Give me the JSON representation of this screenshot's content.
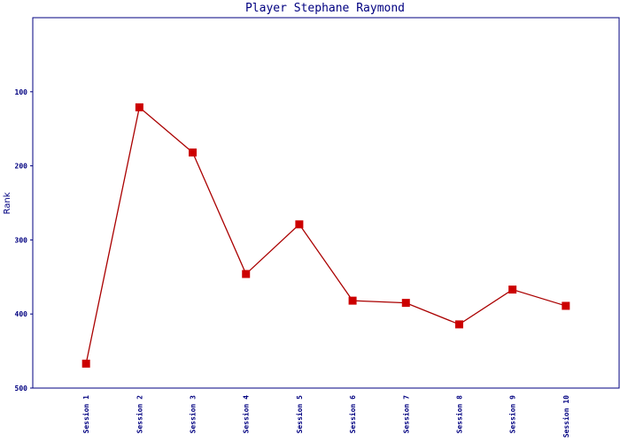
{
  "chart_data": {
    "type": "line",
    "title": "Player Stephane Raymond",
    "y_label": "Rank",
    "categories": [
      "Session 1",
      "Session 2",
      "Session 3",
      "Session 4",
      "Session 5",
      "Session 6",
      "Session 7",
      "Session 8",
      "Session 9",
      "Session 10"
    ],
    "series": [
      {
        "name": "Rank",
        "color": "#aa0000",
        "marker_color": "#cc0000",
        "values": [
          467,
          121,
          182,
          346,
          279,
          382,
          385,
          414,
          367,
          389
        ]
      }
    ],
    "ylim": [
      500,
      0
    ],
    "yticks": [
      100,
      200,
      300,
      400,
      500
    ],
    "grid": false
  }
}
